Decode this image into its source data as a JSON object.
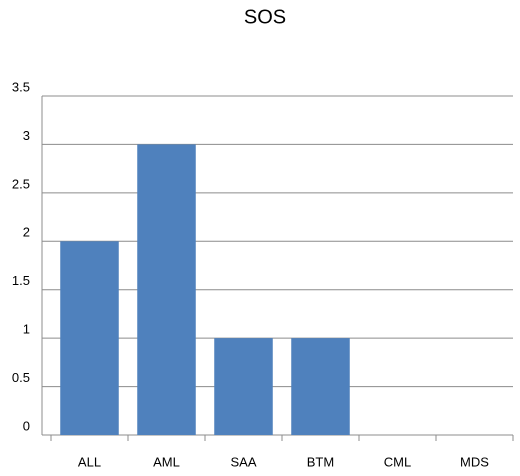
{
  "chart_data": {
    "type": "bar",
    "title": "SOS",
    "categories": [
      "ALL",
      "AML",
      "SAA",
      "BTM",
      "CML",
      "MDS"
    ],
    "values": [
      2,
      3,
      1,
      1,
      0,
      0
    ],
    "color": "#4f81bd",
    "ylim": [
      0,
      3.5
    ],
    "yticks": [
      0,
      0.5,
      1,
      1.5,
      2,
      2.5,
      3,
      3.5
    ],
    "grid": true
  }
}
